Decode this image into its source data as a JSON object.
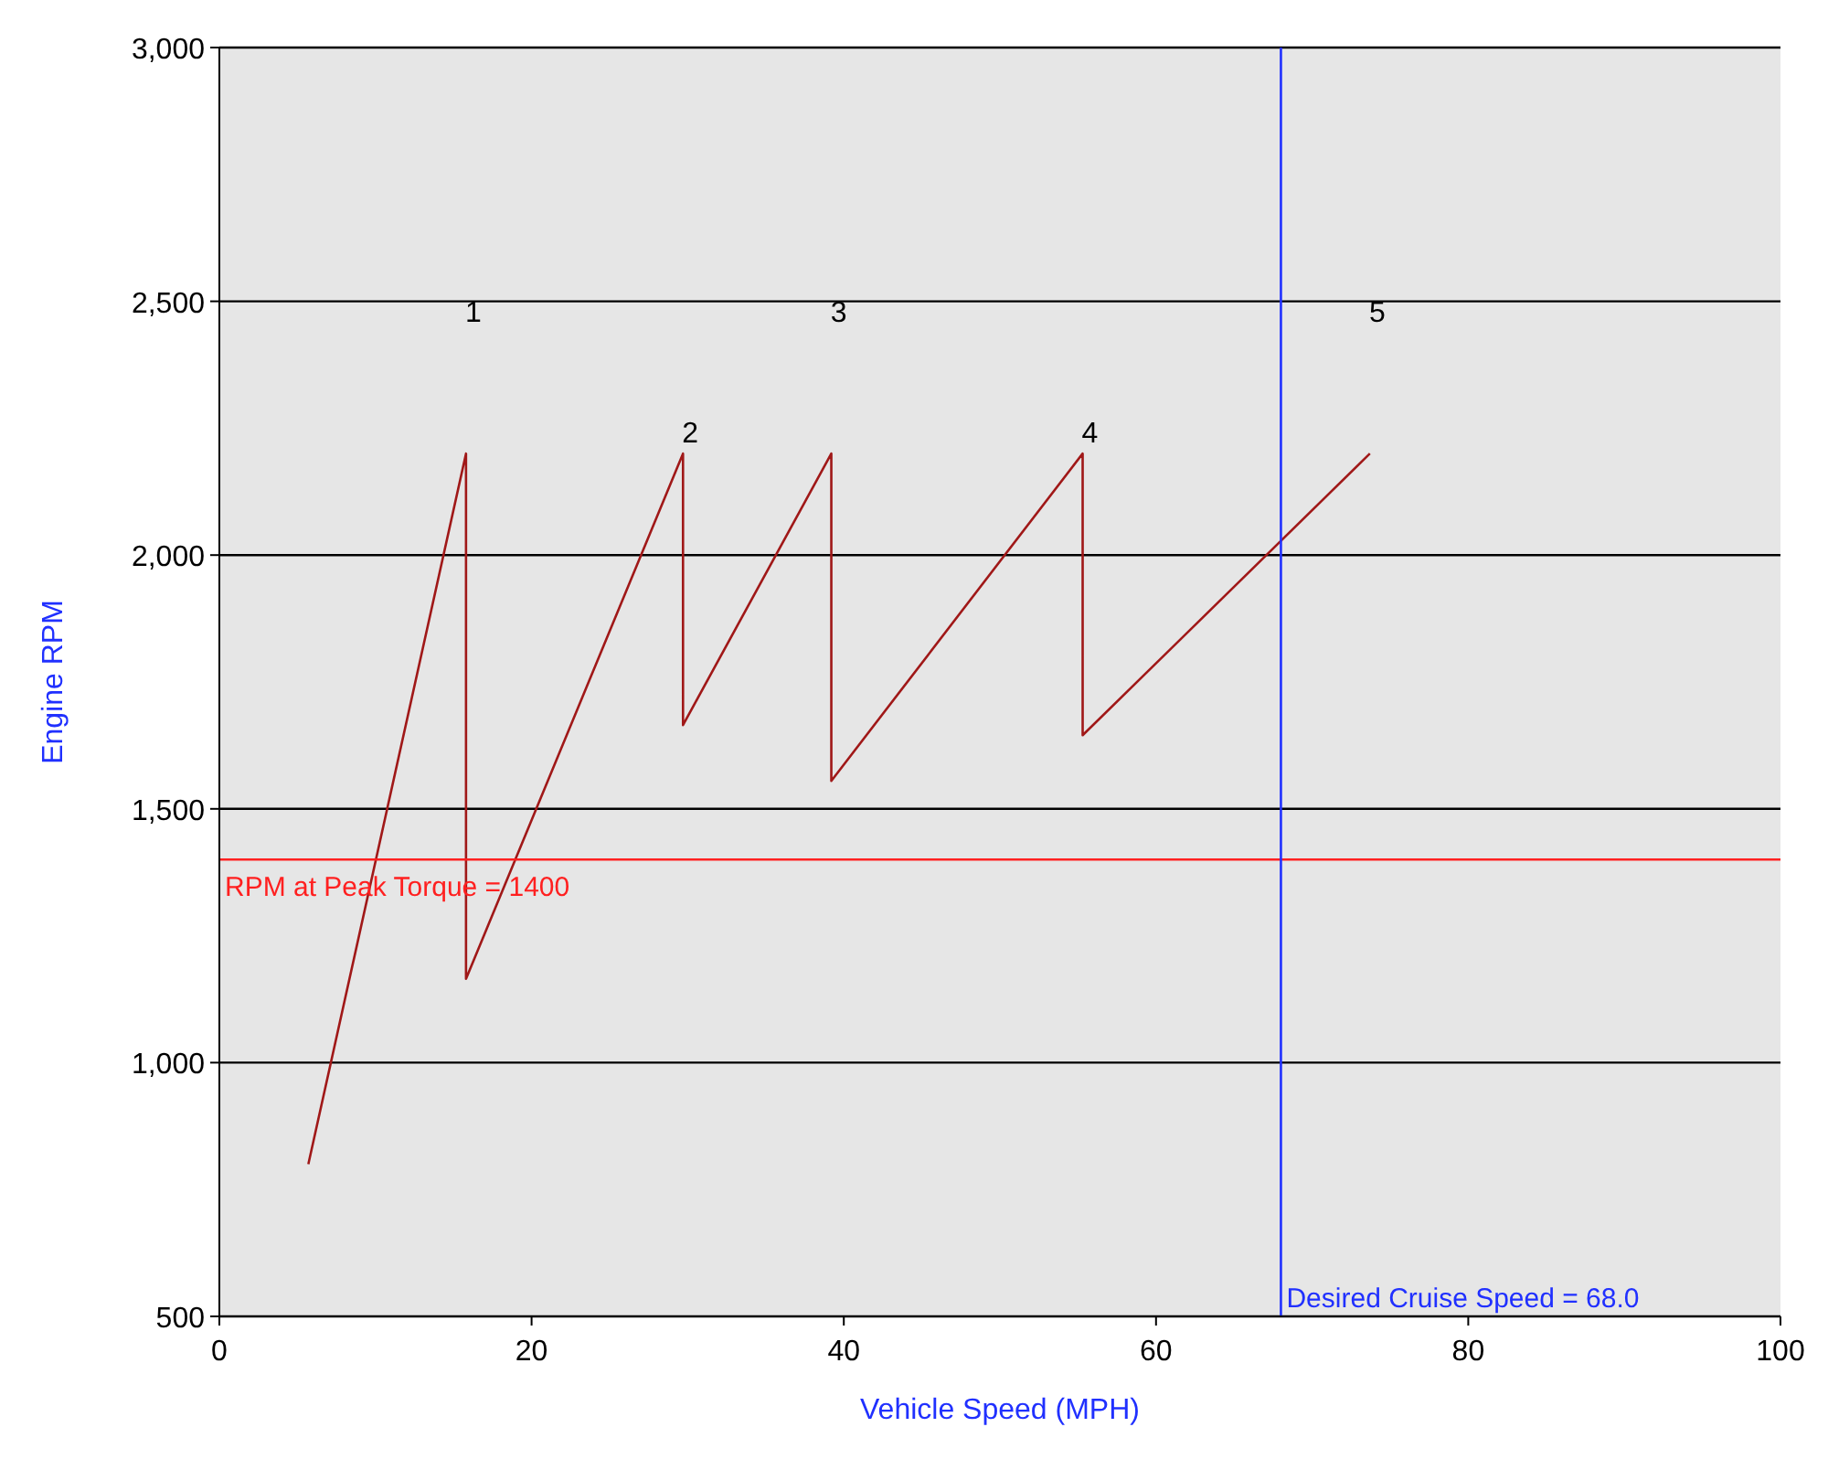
{
  "chart_data": {
    "type": "line",
    "xlabel": "Vehicle Speed (MPH)",
    "ylabel": "Engine RPM",
    "x": [
      5.7,
      15.8,
      15.8,
      29.7,
      29.7,
      39.2,
      39.2,
      55.3,
      55.3,
      73.7
    ],
    "series": [
      {
        "color": "#a01818",
        "values": [
          800,
          2200,
          1165,
          2200,
          1665,
          2200,
          1555,
          2200,
          1645,
          2200
        ]
      }
    ],
    "xlim": [
      0,
      100
    ],
    "xticks": [
      0,
      20,
      40,
      60,
      80,
      100
    ],
    "ylim": [
      500,
      3000
    ],
    "yticks": [
      {
        "value": 500,
        "label": "500"
      },
      {
        "value": 1000,
        "label": "1,000"
      },
      {
        "value": 1500,
        "label": "1,500"
      },
      {
        "value": 2000,
        "label": "2,000"
      },
      {
        "value": 2500,
        "label": "2,500"
      },
      {
        "value": 3000,
        "label": "3,000"
      }
    ],
    "grid": "y",
    "marker": "none",
    "line_style": "solid",
    "ref_lines": [
      {
        "axis": "y",
        "value": 1400,
        "label": "RPM at Peak Torque = 1400",
        "color": "#ff2020"
      },
      {
        "axis": "x",
        "value": 68,
        "label": "Desired Cruise Speed = 68.0",
        "color": "#2030ff"
      }
    ],
    "annotations": [
      "1",
      "2",
      "3",
      "4",
      "5"
    ]
  }
}
